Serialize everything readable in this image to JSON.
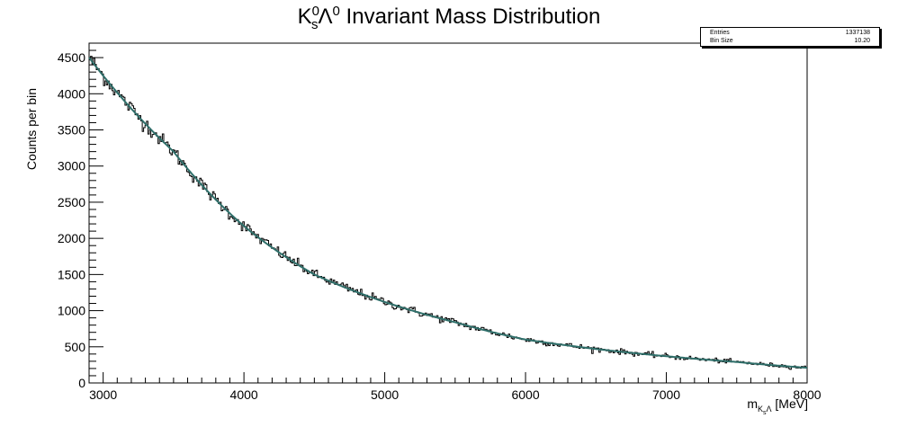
{
  "chart_data": {
    "type": "histogram",
    "title_main": "K",
    "title_sup1": "0",
    "title_sub1": "s",
    "title_lambda": "Λ",
    "title_sup2": "0",
    "title_rest": " Invariant Mass Distribution",
    "ylabel": "Counts per bin",
    "xlabel_m": "m",
    "xlabel_sub": "K",
    "xlabel_subsub": "s",
    "xlabel_sub2": "Λ",
    "xlabel_unit": " [MeV]",
    "xlim": [
      2900,
      8000
    ],
    "ylim": [
      0,
      4700
    ],
    "x_ticks": [
      3000,
      4000,
      5000,
      6000,
      7000,
      8000
    ],
    "y_ticks": [
      0,
      500,
      1000,
      1500,
      2000,
      2500,
      3000,
      3500,
      4000,
      4500
    ],
    "bin_width": 10.2,
    "fit_curve": [
      {
        "x": 2900,
        "y": 4500
      },
      {
        "x": 3000,
        "y": 4250
      },
      {
        "x": 3500,
        "y": 3200
      },
      {
        "x": 4000,
        "y": 2170
      },
      {
        "x": 4500,
        "y": 1500
      },
      {
        "x": 5000,
        "y": 1120
      },
      {
        "x": 5500,
        "y": 840
      },
      {
        "x": 6000,
        "y": 600
      },
      {
        "x": 6500,
        "y": 470
      },
      {
        "x": 7000,
        "y": 370
      },
      {
        "x": 7500,
        "y": 290
      },
      {
        "x": 8000,
        "y": 210
      }
    ],
    "colors": {
      "histogram": "#000000",
      "fit": "#2f6f6a"
    }
  },
  "stats": {
    "entries_label": "Entries",
    "entries_value": "1337138",
    "binsize_label": "Bin Size",
    "binsize_value": "10.20"
  }
}
